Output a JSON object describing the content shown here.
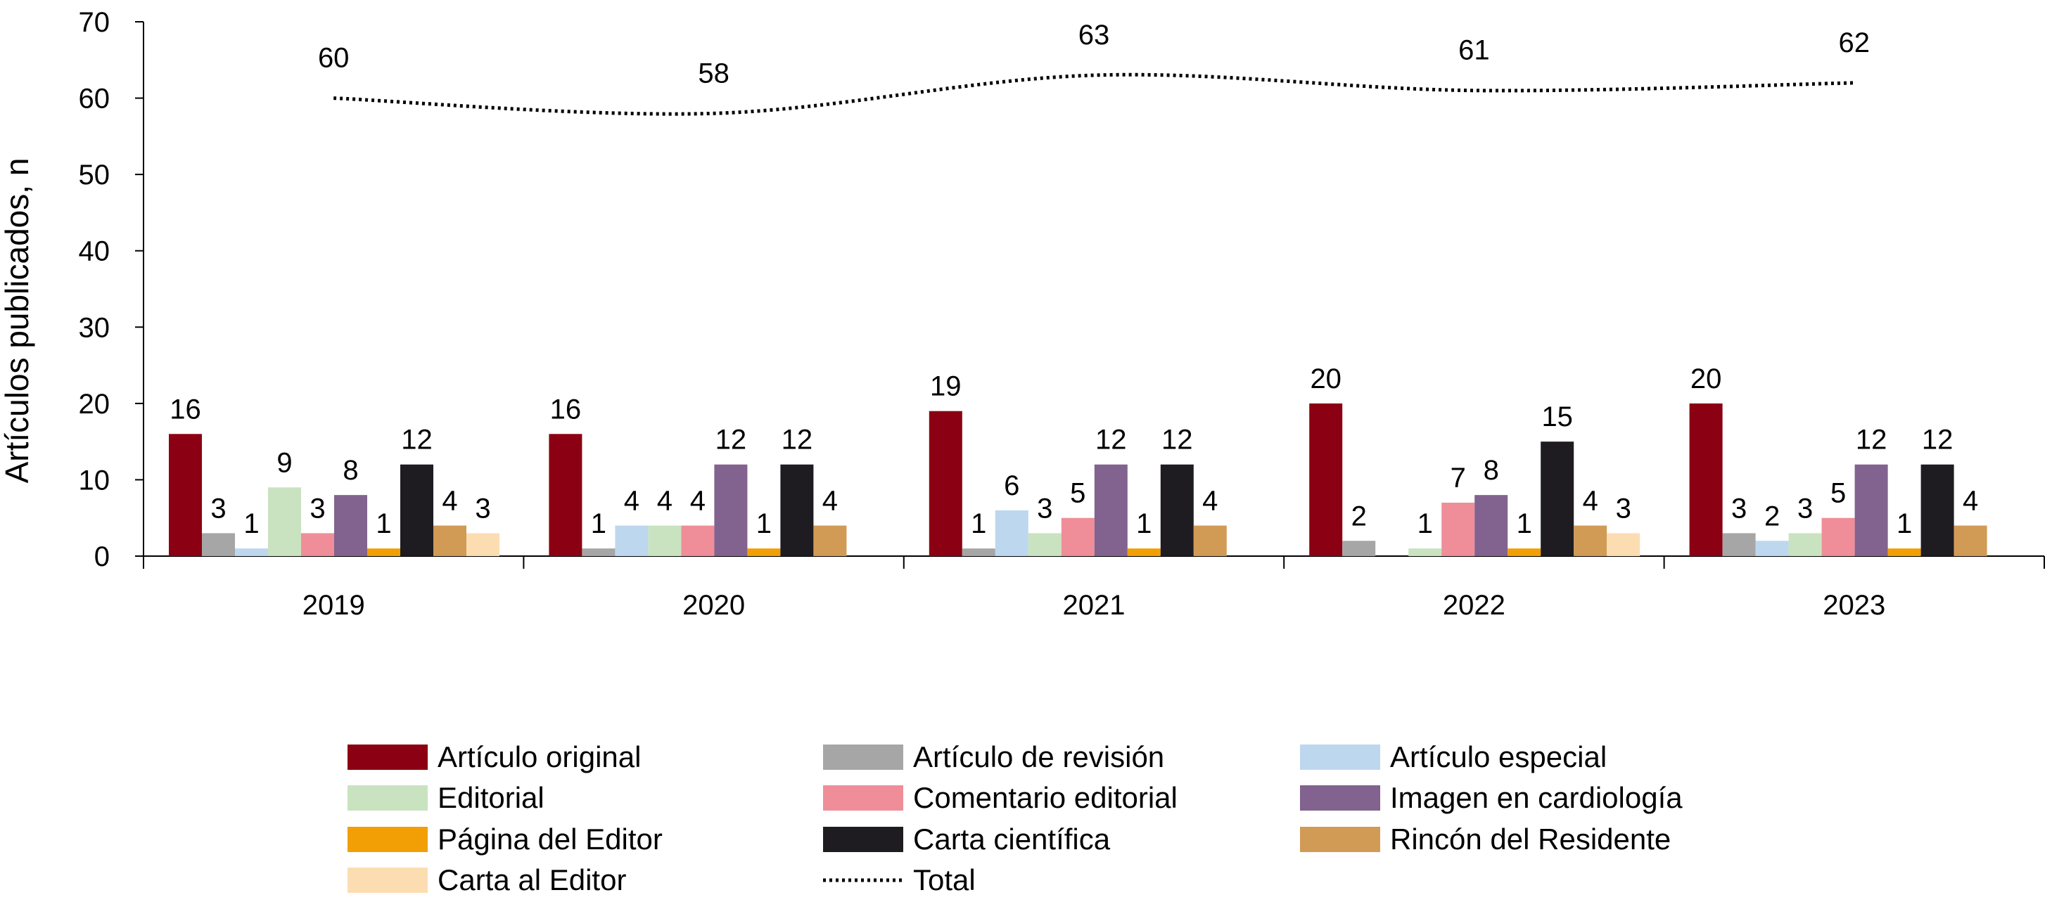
{
  "chart_data": {
    "type": "bar",
    "ylabel": "Artículos publicados, n",
    "ylim": [
      0,
      70
    ],
    "yticks": [
      0,
      10,
      20,
      30,
      40,
      50,
      60,
      70
    ],
    "categories": [
      "2019",
      "2020",
      "2021",
      "2022",
      "2023"
    ],
    "grid": false,
    "legend_position": "bottom",
    "series": [
      {
        "name": "Artículo original",
        "color": "#8B0012",
        "values": [
          16,
          16,
          19,
          20,
          20
        ]
      },
      {
        "name": "Artículo de revisión",
        "color": "#A6A6A6",
        "values": [
          3,
          1,
          1,
          2,
          3
        ]
      },
      {
        "name": "Artículo especial",
        "color": "#BDD7EE",
        "values": [
          1,
          4,
          6,
          null,
          2
        ]
      },
      {
        "name": "Editorial",
        "color": "#C9E3C0",
        "values": [
          9,
          4,
          3,
          1,
          3
        ]
      },
      {
        "name": "Comentario editorial",
        "color": "#EF8E99",
        "values": [
          3,
          4,
          5,
          7,
          5
        ]
      },
      {
        "name": "Imagen en cardiología",
        "color": "#82628F",
        "values": [
          8,
          12,
          12,
          8,
          12
        ]
      },
      {
        "name": "Página del Editor",
        "color": "#F29F05",
        "values": [
          1,
          1,
          1,
          1,
          1
        ]
      },
      {
        "name": "Carta científica",
        "color": "#1E1C21",
        "values": [
          12,
          12,
          12,
          15,
          12
        ]
      },
      {
        "name": "Rincón del Residente",
        "color": "#D19B55",
        "values": [
          4,
          4,
          4,
          4,
          4
        ]
      },
      {
        "name": "Carta al Editor",
        "color": "#FCDDB2",
        "values": [
          3,
          null,
          null,
          3,
          null
        ]
      }
    ],
    "line_series": {
      "name": "Total",
      "style": "dotted",
      "color": "#000000",
      "values": [
        60,
        58,
        63,
        61,
        62
      ]
    }
  }
}
